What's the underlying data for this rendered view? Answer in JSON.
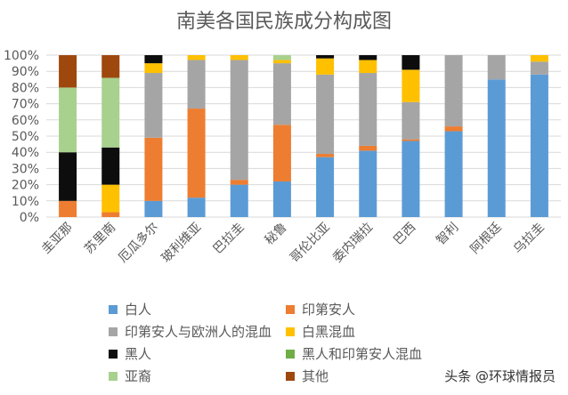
{
  "chart_data": {
    "type": "bar",
    "stacked": "percent",
    "title": "南美各国民族成分构成图",
    "xlabel": "",
    "ylabel": "",
    "ylim": [
      0,
      100
    ],
    "yticks": [
      "0%",
      "10%",
      "20%",
      "30%",
      "40%",
      "50%",
      "60%",
      "70%",
      "80%",
      "90%",
      "100%"
    ],
    "grid": true,
    "legend_position": "bottom",
    "categories": [
      "圭亚那",
      "苏里南",
      "厄瓜多尔",
      "玻利维亚",
      "巴拉圭",
      "秘鲁",
      "哥伦比亚",
      "委内瑞拉",
      "巴西",
      "智利",
      "阿根廷",
      "乌拉圭"
    ],
    "series": [
      {
        "name": "白人",
        "color": "#5B9BD5",
        "values": [
          0,
          0,
          10,
          12,
          20,
          22,
          37,
          41,
          47,
          53,
          85,
          88
        ]
      },
      {
        "name": "印第安人",
        "color": "#ED7D31",
        "values": [
          10,
          3,
          39,
          55,
          3,
          35,
          2,
          3,
          1,
          3,
          0,
          0
        ]
      },
      {
        "name": "印第安人与欧洲人的混血",
        "color": "#A5A5A5",
        "values": [
          0,
          0,
          40,
          30,
          74,
          38,
          49,
          45,
          23,
          44,
          15,
          8
        ]
      },
      {
        "name": "白黑混血",
        "color": "#FFC000",
        "values": [
          0,
          17,
          6,
          3,
          3,
          2,
          10,
          8,
          20,
          0,
          0,
          4
        ]
      },
      {
        "name": "黑人",
        "color": "#0D0D0D",
        "values": [
          30,
          23,
          5,
          0,
          0,
          0,
          2,
          3,
          9,
          0,
          0,
          0
        ]
      },
      {
        "name": "黑人和印第安人混血",
        "color": "#70AD47",
        "values": [
          0,
          0,
          0,
          0,
          0,
          0,
          0,
          0,
          0,
          0,
          0,
          0
        ]
      },
      {
        "name": "亚裔",
        "color": "#A9D18E",
        "values": [
          40,
          43,
          0,
          0,
          0,
          3,
          0,
          0,
          0,
          0,
          0,
          0
        ]
      },
      {
        "name": "其他",
        "color": "#9E480E",
        "values": [
          20,
          14,
          0,
          0,
          0,
          0,
          0,
          0,
          0,
          0,
          0,
          0
        ]
      }
    ]
  },
  "watermark": "头条 @环球情报员"
}
